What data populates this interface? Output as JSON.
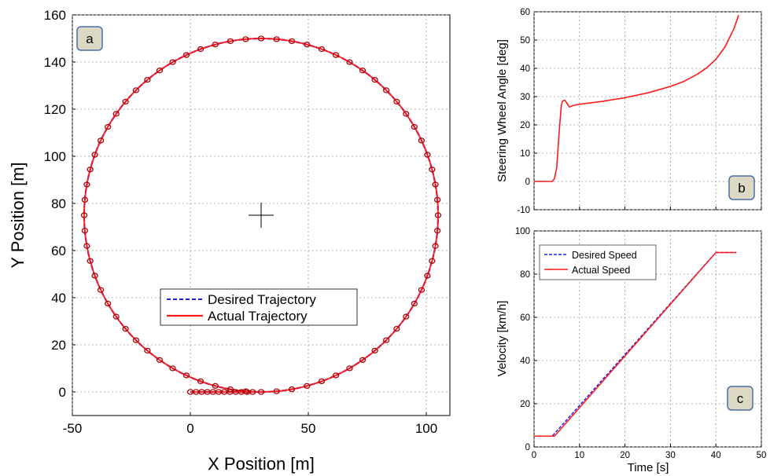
{
  "colors": {
    "desired": "#1f1fe0",
    "actual": "#ff1a1a",
    "panel_tag_bg": "#ddd8c4",
    "panel_tag_border": "#4a6fa5"
  },
  "chart_data": [
    {
      "id": "a",
      "type": "line",
      "panel_tag": "a",
      "xlabel": "X Position [m]",
      "ylabel": "Y Position [m]",
      "xlim": [
        -50,
        110
      ],
      "ylim": [
        -10,
        160
      ],
      "xticks": [
        -50,
        0,
        50,
        100
      ],
      "yticks": [
        0,
        20,
        40,
        60,
        80,
        100,
        120,
        140,
        160
      ],
      "grid": true,
      "legend_placement": "center",
      "center_marker": [
        30,
        75
      ],
      "circle": {
        "center": [
          30,
          75
        ],
        "radius": 75
      },
      "series": [
        {
          "name": "Desired Trajectory",
          "style": "dashed",
          "color": "#1f1fe0",
          "x": [
            0,
            10,
            20,
            30,
            30,
            "circle"
          ],
          "y": [
            0,
            0,
            0,
            0,
            0,
            "circle"
          ]
        },
        {
          "name": "Actual Trajectory",
          "style": "solid",
          "color": "#ff1a1a",
          "x": [
            0,
            10,
            20,
            30,
            30,
            "circle"
          ],
          "y": [
            0,
            0,
            0,
            0,
            0,
            "circle"
          ]
        }
      ]
    },
    {
      "id": "b",
      "type": "line",
      "panel_tag": "b",
      "xlabel": "",
      "ylabel": "Steering Wheel Angle [deg]",
      "xlim": [
        0,
        50
      ],
      "ylim": [
        -10,
        60
      ],
      "xticks": [
        0,
        10,
        20,
        30,
        40,
        50
      ],
      "yticks": [
        -10,
        0,
        10,
        20,
        30,
        40,
        50,
        60
      ],
      "show_xtick_labels": false,
      "grid": true,
      "series": [
        {
          "name": "",
          "color": "#ff1a1a",
          "x": [
            0,
            4,
            4.5,
            5,
            5.5,
            6,
            6.3,
            6.8,
            7.3,
            7.8,
            8.5,
            10,
            15,
            20,
            25,
            30,
            33,
            36,
            38,
            40,
            42,
            44,
            45
          ],
          "y": [
            0,
            0,
            1,
            5,
            17,
            27,
            28.5,
            28.7,
            27.5,
            26.3,
            26.8,
            27.3,
            28.3,
            29.6,
            31.3,
            33.6,
            35.4,
            38.0,
            40.2,
            43.2,
            47.6,
            54.1,
            58.8
          ]
        }
      ]
    },
    {
      "id": "c",
      "type": "line",
      "panel_tag": "c",
      "xlabel": "Time [s]",
      "ylabel": "Velocity [km/h]",
      "xlim": [
        0,
        50
      ],
      "ylim": [
        0,
        100
      ],
      "xticks": [
        0,
        10,
        20,
        30,
        40,
        50
      ],
      "yticks": [
        0,
        20,
        40,
        60,
        80,
        100
      ],
      "grid": true,
      "legend_placement": "top-left",
      "series": [
        {
          "name": "Desired Speed",
          "style": "dashed",
          "color": "#1f1fe0",
          "x": [
            0,
            4,
            40,
            44.5
          ],
          "y": [
            5,
            5,
            90,
            90
          ]
        },
        {
          "name": "Actual Speed",
          "style": "solid",
          "color": "#ff1a1a",
          "x": [
            0,
            4.5,
            40,
            44.5
          ],
          "y": [
            5,
            5,
            90,
            90
          ]
        }
      ]
    }
  ]
}
